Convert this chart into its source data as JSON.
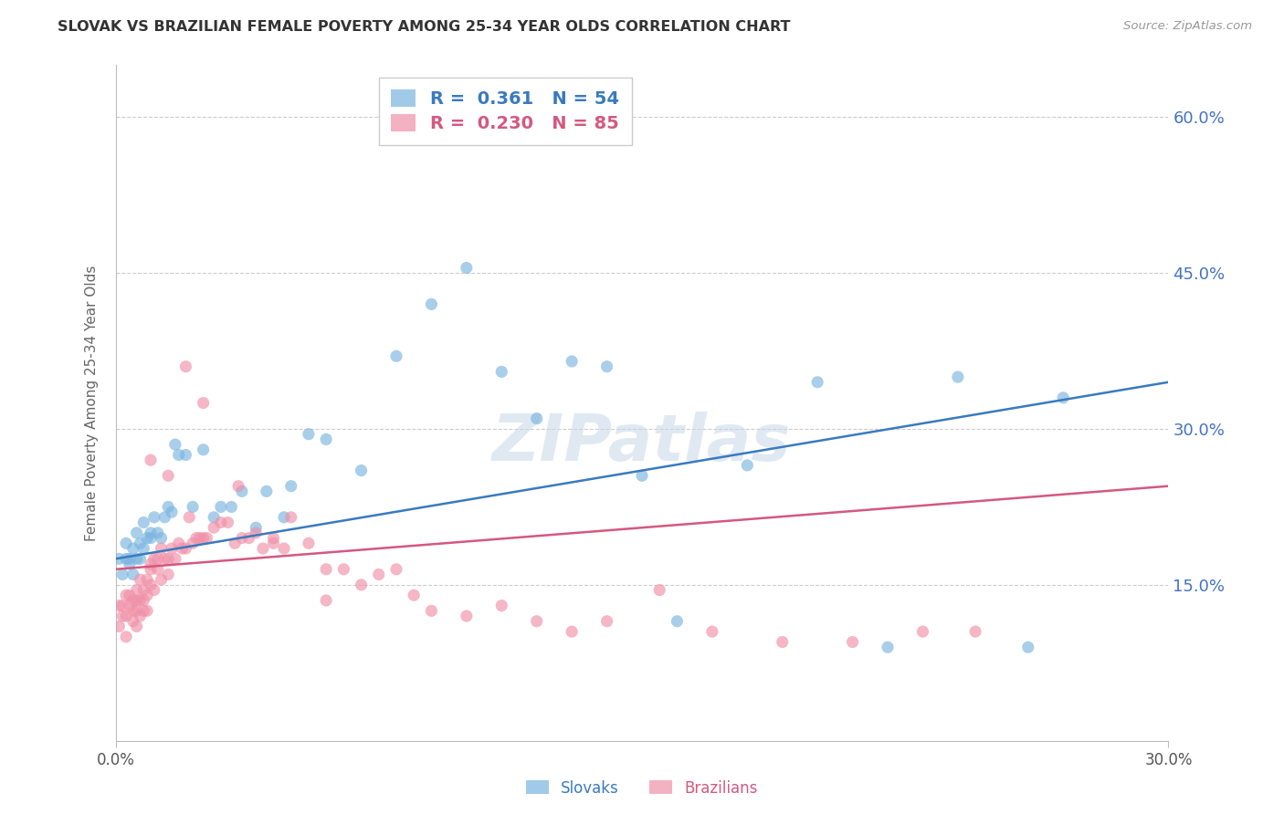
{
  "title": "SLOVAK VS BRAZILIAN FEMALE POVERTY AMONG 25-34 YEAR OLDS CORRELATION CHART",
  "source": "Source: ZipAtlas.com",
  "ylabel": "Female Poverty Among 25-34 Year Olds",
  "xlim": [
    0.0,
    0.3
  ],
  "ylim": [
    0.0,
    0.65
  ],
  "xticks": [
    0.0,
    0.3
  ],
  "xtick_labels": [
    "0.0%",
    "30.0%"
  ],
  "yticks": [
    0.0,
    0.15,
    0.3,
    0.45,
    0.6
  ],
  "ytick_labels_right": [
    "",
    "15.0%",
    "30.0%",
    "45.0%",
    "60.0%"
  ],
  "legend_slovak_R": "0.361",
  "legend_slovak_N": "54",
  "legend_brazilian_R": "0.230",
  "legend_brazilian_N": "85",
  "color_slovak": "#7ab4e0",
  "color_brazilian": "#f090a8",
  "color_trend_slovak": "#3a7abf",
  "color_trend_brazilian": "#d45880",
  "color_axis": "#bbbbbb",
  "color_right_ticks": "#4472c4",
  "background_color": "#ffffff",
  "grid_color": "#cccccc",
  "watermark": "ZIPatlas",
  "slovak_x": [
    0.001,
    0.002,
    0.003,
    0.003,
    0.004,
    0.004,
    0.005,
    0.005,
    0.006,
    0.006,
    0.007,
    0.007,
    0.008,
    0.008,
    0.009,
    0.01,
    0.01,
    0.011,
    0.012,
    0.013,
    0.014,
    0.015,
    0.016,
    0.017,
    0.018,
    0.02,
    0.022,
    0.025,
    0.028,
    0.03,
    0.033,
    0.036,
    0.04,
    0.043,
    0.048,
    0.05,
    0.055,
    0.06,
    0.07,
    0.08,
    0.09,
    0.1,
    0.11,
    0.12,
    0.13,
    0.14,
    0.15,
    0.16,
    0.18,
    0.2,
    0.22,
    0.24,
    0.26,
    0.27
  ],
  "slovak_y": [
    0.175,
    0.16,
    0.175,
    0.19,
    0.17,
    0.175,
    0.16,
    0.185,
    0.175,
    0.2,
    0.19,
    0.175,
    0.21,
    0.185,
    0.195,
    0.195,
    0.2,
    0.215,
    0.2,
    0.195,
    0.215,
    0.225,
    0.22,
    0.285,
    0.275,
    0.275,
    0.225,
    0.28,
    0.215,
    0.225,
    0.225,
    0.24,
    0.205,
    0.24,
    0.215,
    0.245,
    0.295,
    0.29,
    0.26,
    0.37,
    0.42,
    0.455,
    0.355,
    0.31,
    0.365,
    0.36,
    0.255,
    0.115,
    0.265,
    0.345,
    0.09,
    0.35,
    0.09,
    0.33
  ],
  "brazilian_x": [
    0.001,
    0.001,
    0.002,
    0.002,
    0.003,
    0.003,
    0.003,
    0.004,
    0.004,
    0.005,
    0.005,
    0.005,
    0.006,
    0.006,
    0.006,
    0.006,
    0.007,
    0.007,
    0.007,
    0.008,
    0.008,
    0.008,
    0.009,
    0.009,
    0.009,
    0.01,
    0.01,
    0.01,
    0.011,
    0.011,
    0.012,
    0.012,
    0.013,
    0.013,
    0.014,
    0.015,
    0.015,
    0.016,
    0.017,
    0.018,
    0.019,
    0.02,
    0.021,
    0.022,
    0.023,
    0.024,
    0.025,
    0.026,
    0.028,
    0.03,
    0.032,
    0.034,
    0.036,
    0.038,
    0.04,
    0.042,
    0.045,
    0.048,
    0.05,
    0.055,
    0.06,
    0.065,
    0.07,
    0.075,
    0.08,
    0.085,
    0.09,
    0.1,
    0.11,
    0.12,
    0.13,
    0.14,
    0.155,
    0.17,
    0.19,
    0.21,
    0.23,
    0.245,
    0.01,
    0.015,
    0.02,
    0.025,
    0.035,
    0.045,
    0.06
  ],
  "brazilian_y": [
    0.13,
    0.11,
    0.13,
    0.12,
    0.14,
    0.12,
    0.1,
    0.13,
    0.14,
    0.125,
    0.135,
    0.115,
    0.125,
    0.145,
    0.135,
    0.11,
    0.155,
    0.135,
    0.12,
    0.145,
    0.135,
    0.125,
    0.155,
    0.14,
    0.125,
    0.17,
    0.165,
    0.15,
    0.175,
    0.145,
    0.175,
    0.165,
    0.185,
    0.155,
    0.175,
    0.175,
    0.16,
    0.185,
    0.175,
    0.19,
    0.185,
    0.185,
    0.215,
    0.19,
    0.195,
    0.195,
    0.195,
    0.195,
    0.205,
    0.21,
    0.21,
    0.19,
    0.195,
    0.195,
    0.2,
    0.185,
    0.19,
    0.185,
    0.215,
    0.19,
    0.135,
    0.165,
    0.15,
    0.16,
    0.165,
    0.14,
    0.125,
    0.12,
    0.13,
    0.115,
    0.105,
    0.115,
    0.145,
    0.105,
    0.095,
    0.095,
    0.105,
    0.105,
    0.27,
    0.255,
    0.36,
    0.325,
    0.245,
    0.195,
    0.165
  ],
  "trend_slovak_y0": 0.175,
  "trend_slovak_y1": 0.345,
  "trend_brazilian_y0": 0.165,
  "trend_brazilian_y1": 0.245
}
